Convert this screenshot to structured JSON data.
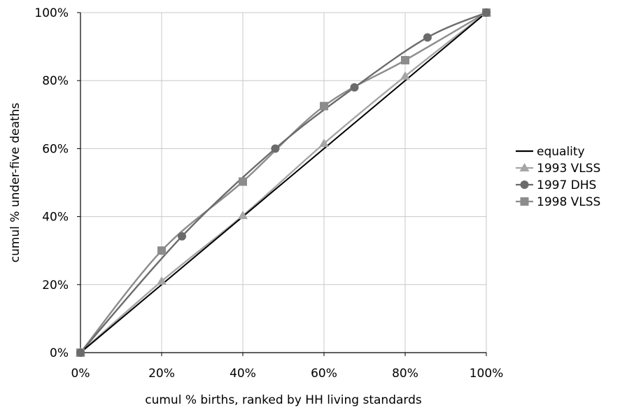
{
  "chart_data": {
    "type": "line",
    "title": "",
    "xlabel": "cumul % births, ranked by HH living standards",
    "ylabel": "cumul % under-five deaths",
    "xlim": [
      0,
      100
    ],
    "ylim": [
      0,
      100
    ],
    "x_ticks": [
      "0%",
      "20%",
      "40%",
      "60%",
      "80%",
      "100%"
    ],
    "y_ticks": [
      "0%",
      "20%",
      "40%",
      "60%",
      "80%",
      "100%"
    ],
    "grid": true,
    "legend_position": "right",
    "series": [
      {
        "name": "equality",
        "color": "#000000",
        "marker": "none",
        "points": [
          [
            0,
            0
          ],
          [
            100,
            100
          ]
        ]
      },
      {
        "name": "1993 VLSS",
        "color": "#a6a6a6",
        "marker": "triangle",
        "points": [
          [
            0,
            0
          ],
          [
            20,
            21
          ],
          [
            40,
            40.3
          ],
          [
            60,
            61.5
          ],
          [
            80,
            81.3
          ],
          [
            100,
            100
          ]
        ]
      },
      {
        "name": "1997 DHS",
        "color": "#6b6b6b",
        "marker": "circle",
        "points": [
          [
            0,
            0
          ],
          [
            25,
            34.2
          ],
          [
            48,
            60
          ],
          [
            67.5,
            78
          ],
          [
            85.5,
            92.7
          ],
          [
            100,
            100
          ]
        ]
      },
      {
        "name": "1998 VLSS",
        "color": "#8c8c8c",
        "marker": "square",
        "points": [
          [
            0,
            0
          ],
          [
            20,
            30
          ],
          [
            40,
            50.3
          ],
          [
            60,
            72.5
          ],
          [
            80,
            86
          ],
          [
            100,
            100
          ]
        ]
      }
    ]
  }
}
